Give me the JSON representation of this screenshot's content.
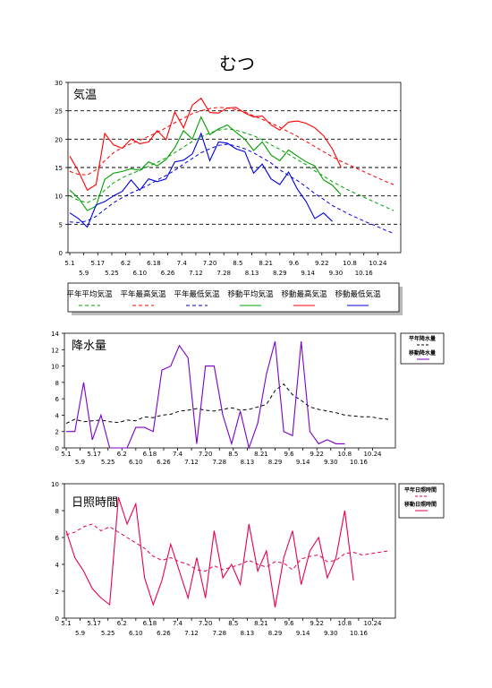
{
  "page_title": "むつ",
  "colors": {
    "temp_mean": "#00a000",
    "temp_max": "#ff0000",
    "temp_min": "#0000e0",
    "precip_norm": "#000000",
    "precip_move": "#7a00c8",
    "sun_norm": "#e8004a",
    "sun_move": "#e8004a"
  },
  "chart_data": [
    {
      "type": "line",
      "title": "気温",
      "ylim": [
        0,
        30
      ],
      "yticks": [
        "0",
        "5",
        "10",
        "15",
        "20",
        "25",
        "30"
      ],
      "x_ticks_row1": [
        "5.1",
        "5.17",
        "6.2",
        "6.18",
        "7.4",
        "7.20",
        "8.5",
        "8.21",
        "9.6",
        "9.22",
        "10.8",
        "10.24"
      ],
      "x_ticks_row2": [
        "5.9",
        "5.25",
        "6.10",
        "6.26",
        "7.12",
        "7.28",
        "8.13",
        "8.29",
        "9.14",
        "9.30",
        "10.16"
      ],
      "grid": "dashed horizontal at 5,10,15,20,25",
      "legend": [
        "平年平均気温",
        "平年最高気温",
        "平年最低気温",
        "移動平均気温",
        "移動最高気温",
        "移動最低気温"
      ],
      "x": [
        0,
        5,
        10,
        15,
        20,
        25,
        30,
        35,
        40,
        45,
        50,
        55,
        60,
        65,
        70,
        75,
        80,
        85,
        90,
        95,
        100,
        105,
        110,
        115,
        120,
        125,
        130,
        135,
        140,
        145,
        150,
        155,
        160,
        165,
        170,
        175,
        180,
        185
      ],
      "series": [
        {
          "name": "平年平均気温",
          "style": "dashed",
          "color": "#00a000",
          "values": [
            10.0,
            9.2,
            8.8,
            9.6,
            11.0,
            12.3,
            13.2,
            13.9,
            14.5,
            15.2,
            15.9,
            16.7,
            17.6,
            18.6,
            19.6,
            20.4,
            21.1,
            21.6,
            21.8,
            21.6,
            21.1,
            20.6,
            19.9,
            19.0,
            18.2,
            17.3,
            16.4,
            15.5,
            14.4,
            13.5,
            12.5,
            11.7,
            10.9,
            10.2,
            9.5,
            8.8,
            8.1,
            7.4
          ]
        },
        {
          "name": "平年最高気温",
          "style": "dashed",
          "color": "#ff0000",
          "values": [
            14.3,
            13.8,
            13.7,
            14.6,
            16.2,
            17.6,
            18.5,
            19.2,
            19.8,
            20.5,
            21.2,
            22.0,
            22.9,
            23.7,
            24.5,
            25.0,
            25.4,
            25.6,
            25.5,
            25.2,
            24.8,
            24.1,
            23.5,
            22.8,
            22.1,
            21.3,
            20.5,
            19.6,
            18.7,
            17.8,
            16.9,
            16.1,
            15.4,
            14.7,
            14.0,
            13.3,
            12.6,
            12.0
          ]
        },
        {
          "name": "平年最低気温",
          "style": "dashed",
          "color": "#0000e0",
          "values": [
            5.4,
            5.3,
            5.6,
            6.4,
            7.6,
            8.8,
            9.7,
            10.5,
            11.2,
            11.9,
            12.8,
            13.6,
            14.5,
            15.6,
            16.6,
            17.6,
            18.3,
            18.9,
            19.1,
            18.8,
            18.3,
            17.6,
            16.7,
            15.8,
            14.6,
            13.6,
            12.7,
            11.6,
            10.4,
            9.4,
            8.3,
            7.5,
            6.7,
            6.0,
            5.3,
            4.7,
            4.0,
            3.4
          ]
        },
        {
          "name": "移動平均気温",
          "style": "solid",
          "color": "#00a000",
          "values": [
            11.0,
            9.6,
            7.4,
            8.2,
            12.9,
            14.0,
            14.3,
            14.8,
            14.5,
            16.0,
            15.3,
            16.4,
            18.5,
            21.5,
            20.0,
            23.9,
            20.8,
            21.8,
            22.5,
            21.2,
            20.0,
            18.0,
            19.5,
            17.2,
            16.2,
            18.1,
            17.0,
            16.0,
            15.3,
            12.8,
            11.9,
            10.2,
            null,
            null,
            null,
            null,
            null,
            null
          ]
        },
        {
          "name": "移動最高気温",
          "style": "solid",
          "color": "#ff0000",
          "values": [
            17.0,
            14.3,
            11.0,
            12.0,
            21.0,
            19.0,
            18.4,
            20.0,
            19.2,
            19.5,
            21.5,
            19.9,
            24.8,
            22.0,
            26.0,
            27.2,
            24.7,
            24.6,
            25.5,
            25.6,
            24.6,
            23.9,
            24.1,
            22.5,
            21.6,
            23.0,
            23.2,
            22.8,
            22.0,
            20.6,
            18.3,
            15.0,
            null,
            null,
            null,
            null,
            null,
            null
          ]
        },
        {
          "name": "移動最低気温",
          "style": "solid",
          "color": "#0000e0",
          "values": [
            7.0,
            6.0,
            4.5,
            8.4,
            9.0,
            10.0,
            10.8,
            12.8,
            11.0,
            13.0,
            12.5,
            13.0,
            16.0,
            16.3,
            17.4,
            21.0,
            16.2,
            19.5,
            19.3,
            18.3,
            17.8,
            14.0,
            15.6,
            13.0,
            12.0,
            14.2,
            11.2,
            9.0,
            6.0,
            7.0,
            5.5,
            null,
            null,
            null,
            null,
            null,
            null,
            null
          ]
        }
      ]
    },
    {
      "type": "line",
      "title": "降水量",
      "ylim": [
        0,
        14
      ],
      "yticks": [
        "0",
        "2",
        "4",
        "6",
        "8",
        "10",
        "12",
        "14"
      ],
      "x_ticks_row1": [
        "5.1",
        "5.17",
        "6.2",
        "6.18",
        "7.4",
        "7.20",
        "8.5",
        "8.21",
        "9.6",
        "9.22",
        "10.8",
        "10.24"
      ],
      "x_ticks_row2": [
        "5.9",
        "5.25",
        "6.10",
        "6.26",
        "7.12",
        "7.28",
        "8.13",
        "8.29",
        "9.14",
        "9.30",
        "10.16"
      ],
      "legend": [
        "平年降水量",
        "移動降水量"
      ],
      "x": [
        0,
        5,
        10,
        15,
        20,
        25,
        30,
        35,
        40,
        45,
        50,
        55,
        60,
        65,
        70,
        75,
        80,
        85,
        90,
        95,
        100,
        105,
        110,
        115,
        120,
        125,
        130,
        135,
        140,
        145,
        150,
        155,
        160,
        165,
        170,
        175,
        180,
        185
      ],
      "series": [
        {
          "name": "平年降水量",
          "style": "dashed",
          "color": "#000000",
          "values": [
            3.0,
            3.5,
            3.2,
            3.3,
            3.4,
            3.2,
            3.1,
            3.4,
            3.3,
            3.8,
            3.7,
            4.0,
            4.1,
            4.5,
            4.6,
            4.8,
            4.6,
            4.5,
            4.7,
            4.9,
            4.6,
            4.7,
            5.0,
            5.3,
            7.0,
            7.8,
            6.5,
            5.8,
            5.0,
            4.7,
            4.5,
            4.3,
            4.0,
            3.9,
            3.8,
            3.8,
            3.6,
            3.5
          ]
        },
        {
          "name": "移動降水量",
          "style": "solid",
          "color": "#7a00c8",
          "values": [
            2.0,
            2.0,
            8.0,
            1.0,
            4.0,
            0.0,
            0.0,
            0.0,
            2.5,
            2.5,
            2.0,
            9.5,
            10.0,
            12.5,
            11.0,
            0.5,
            10.0,
            10.0,
            4.0,
            0.5,
            4.5,
            0.0,
            3.0,
            9.0,
            13.0,
            2.0,
            1.5,
            13.0,
            2.0,
            0.5,
            1.0,
            0.5,
            0.5,
            null,
            null,
            null,
            null,
            null
          ]
        }
      ]
    },
    {
      "type": "line",
      "title": "日照時間",
      "ylim": [
        0,
        10
      ],
      "yticks": [
        "0",
        "2",
        "4",
        "6",
        "8",
        "10"
      ],
      "x_ticks_row1": [
        "5.1",
        "5.17",
        "6.2",
        "6.18",
        "7.4",
        "7.20",
        "8.5",
        "8.21",
        "9.6",
        "9.22",
        "10.8",
        "10.24"
      ],
      "x_ticks_row2": [
        "5.9",
        "5.25",
        "6.10",
        "6.26",
        "7.12",
        "7.28",
        "8.13",
        "8.29",
        "9.14",
        "9.30",
        "10.16"
      ],
      "legend": [
        "平年日照時間",
        "移動日照時間"
      ],
      "x": [
        0,
        5,
        10,
        15,
        20,
        25,
        30,
        35,
        40,
        45,
        50,
        55,
        60,
        65,
        70,
        75,
        80,
        85,
        90,
        95,
        100,
        105,
        110,
        115,
        120,
        125,
        130,
        135,
        140,
        145,
        150,
        155,
        160,
        165,
        170,
        175,
        180,
        185
      ],
      "series": [
        {
          "name": "平年日照時間",
          "style": "dashed",
          "color": "#e8004a",
          "values": [
            6.2,
            6.4,
            6.8,
            7.0,
            6.5,
            6.8,
            6.4,
            6.0,
            5.6,
            5.2,
            4.6,
            4.3,
            4.5,
            4.2,
            4.0,
            3.6,
            3.5,
            3.9,
            3.6,
            3.8,
            4.0,
            4.3,
            4.0,
            3.8,
            4.2,
            4.1,
            3.6,
            4.4,
            4.6,
            4.7,
            4.2,
            4.3,
            4.8,
            4.9,
            4.7,
            4.8,
            4.9,
            5.0
          ]
        },
        {
          "name": "移動日照時間",
          "style": "solid",
          "color": "#e8004a",
          "values": [
            6.5,
            4.5,
            3.5,
            2.2,
            1.5,
            1.0,
            9.0,
            7.0,
            8.5,
            3.0,
            1.0,
            2.8,
            5.5,
            3.5,
            1.5,
            4.5,
            1.5,
            6.5,
            3.0,
            4.0,
            2.5,
            7.0,
            3.5,
            5.0,
            0.8,
            4.5,
            6.5,
            2.5,
            5.0,
            6.0,
            3.0,
            4.5,
            8.0,
            2.8,
            null,
            null,
            null,
            null
          ]
        }
      ]
    }
  ]
}
